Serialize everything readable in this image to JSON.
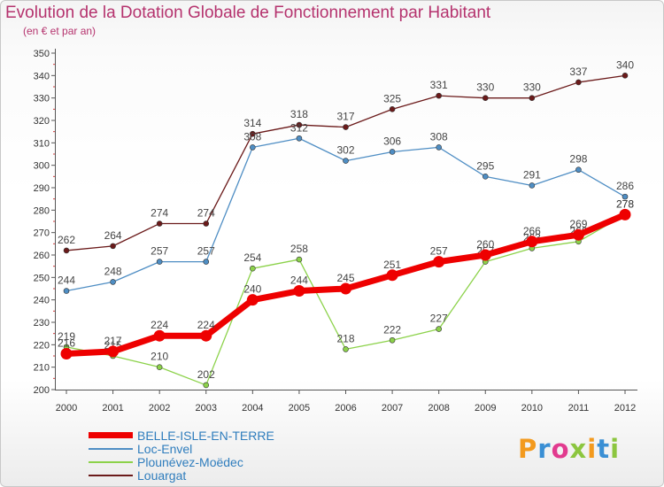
{
  "title": "Evolution de la Dotation Globale de Fonctionnement par Habitant",
  "subtitle": "(en € et par an)",
  "brand": {
    "letters": [
      "P",
      "r",
      "o",
      "x",
      "i",
      "t",
      "i"
    ],
    "colors": [
      "#f39a1e",
      "#3a8fd4",
      "#e23b8f",
      "#8cc63f",
      "#f39a1e",
      "#3a8fd4",
      "#8cc63f"
    ]
  },
  "chart_data": {
    "type": "line",
    "title": "Evolution de la Dotation Globale de Fonctionnement par Habitant",
    "subtitle": "(en € et par an)",
    "xlabel": "",
    "ylabel": "",
    "x": [
      "2000",
      "2001",
      "2002",
      "2003",
      "2004",
      "2005",
      "2006",
      "2007",
      "2008",
      "2009",
      "2010",
      "2011",
      "2012"
    ],
    "ylim": [
      200,
      350
    ],
    "yticks": [
      200,
      210,
      220,
      230,
      240,
      250,
      260,
      270,
      280,
      290,
      300,
      310,
      320,
      330,
      340,
      350
    ],
    "grid": false,
    "legend": "bottom-left",
    "series": [
      {
        "name": "Louargat",
        "color": "#6b1a1a",
        "values": [
          262,
          264,
          274,
          274,
          314,
          318,
          317,
          325,
          331,
          330,
          330,
          337,
          340
        ]
      },
      {
        "name": "Loc-Envel",
        "color": "#4f8ec4",
        "values": [
          244,
          248,
          257,
          257,
          308,
          312,
          302,
          306,
          308,
          295,
          291,
          298,
          286
        ]
      },
      {
        "name": "Plounévez-Moëdec",
        "color": "#8cd24a",
        "values": [
          219,
          215,
          210,
          202,
          254,
          258,
          218,
          222,
          227,
          257,
          263,
          266,
          278
        ]
      },
      {
        "name": "BELLE-ISLE-EN-TERRE",
        "color": "#ee0000",
        "values": [
          216,
          217,
          224,
          224,
          240,
          244,
          245,
          251,
          257,
          260,
          266,
          269,
          278
        ]
      }
    ],
    "legend_entries": [
      "BELLE-ISLE-EN-TERRE",
      "Loc-Envel",
      "Plounévez-Moëdec",
      "Louargat"
    ]
  }
}
